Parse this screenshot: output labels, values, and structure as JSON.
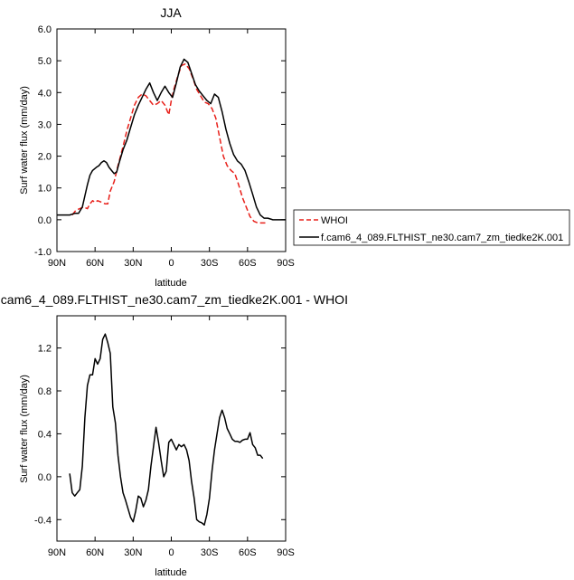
{
  "chart_data": [
    {
      "type": "line",
      "title": "JJA",
      "xlabel": "latitude",
      "ylabel": "Surf water flux (mm/day)",
      "xlim": [
        90,
        -90
      ],
      "ylim": [
        -1.0,
        6.0
      ],
      "xticks": [
        {
          "v": 90,
          "label": "90N"
        },
        {
          "v": 60,
          "label": "60N"
        },
        {
          "v": 30,
          "label": "30N"
        },
        {
          "v": 0,
          "label": "0"
        },
        {
          "v": -30,
          "label": "30S"
        },
        {
          "v": -60,
          "label": "60S"
        },
        {
          "v": -90,
          "label": "90S"
        }
      ],
      "yticks": [
        {
          "v": -1.0,
          "label": "-1.0"
        },
        {
          "v": 0.0,
          "label": "0.0"
        },
        {
          "v": 1.0,
          "label": "1.0"
        },
        {
          "v": 2.0,
          "label": "2.0"
        },
        {
          "v": 3.0,
          "label": "3.0"
        },
        {
          "v": 4.0,
          "label": "4.0"
        },
        {
          "v": 5.0,
          "label": "5.0"
        },
        {
          "v": 6.0,
          "label": "6.0"
        }
      ],
      "grid": false,
      "legend_position": "right, outside plot",
      "series": [
        {
          "name": "WHOI",
          "color": "#e8201a",
          "dash": true,
          "x": [
            78,
            75,
            72,
            69,
            66,
            64,
            62,
            60,
            58,
            55,
            52,
            50,
            48,
            45,
            42,
            38,
            35,
            32,
            29,
            26,
            23,
            20,
            17,
            14,
            11,
            8,
            5,
            2,
            0,
            -2,
            -5,
            -8,
            -11,
            -14,
            -17,
            -20,
            -23,
            -26,
            -29,
            -32,
            -35,
            -38,
            -41,
            -44,
            -47,
            -50,
            -53,
            -56,
            -59,
            -62,
            -65,
            -68,
            -71,
            -74
          ],
          "y": [
            0.15,
            0.3,
            0.35,
            0.4,
            0.35,
            0.5,
            0.6,
            0.55,
            0.6,
            0.55,
            0.5,
            0.5,
            0.9,
            1.2,
            1.7,
            2.3,
            2.8,
            3.2,
            3.6,
            3.85,
            3.95,
            3.9,
            3.75,
            3.6,
            3.65,
            3.75,
            3.6,
            3.3,
            3.75,
            4.1,
            4.5,
            4.85,
            4.9,
            4.75,
            4.45,
            4.1,
            3.9,
            3.7,
            3.65,
            3.5,
            3.2,
            2.6,
            2.0,
            1.7,
            1.55,
            1.45,
            1.1,
            0.7,
            0.4,
            0.1,
            -0.05,
            -0.1,
            -0.1,
            -0.1
          ]
        },
        {
          "name": "f.cam6_4_089.FLTHIST_ne30.cam7_zm_tiedke2K.001",
          "color": "#000000",
          "dash": false,
          "x": [
            90,
            85,
            80,
            76,
            73,
            70,
            68,
            66,
            64,
            62,
            59,
            57,
            55,
            53,
            51,
            49,
            47,
            45,
            43,
            41,
            38,
            35,
            32,
            29,
            26,
            23,
            20,
            17,
            14,
            11,
            8,
            5,
            2,
            -1,
            -4,
            -7,
            -10,
            -13,
            -16,
            -19,
            -22,
            -25,
            -28,
            -31,
            -34,
            -37,
            -40,
            -43,
            -46,
            -49,
            -52,
            -55,
            -58,
            -61,
            -64,
            -67,
            -70,
            -73,
            -76,
            -80,
            -85,
            -90
          ],
          "y": [
            0.15,
            0.15,
            0.15,
            0.2,
            0.2,
            0.4,
            0.75,
            1.1,
            1.4,
            1.55,
            1.65,
            1.7,
            1.8,
            1.85,
            1.8,
            1.65,
            1.55,
            1.45,
            1.5,
            1.8,
            2.2,
            2.5,
            2.9,
            3.3,
            3.6,
            3.85,
            4.1,
            4.3,
            4.0,
            3.75,
            4.0,
            4.2,
            4.0,
            3.85,
            4.3,
            4.8,
            5.05,
            4.95,
            4.6,
            4.25,
            4.05,
            3.9,
            3.75,
            3.65,
            3.95,
            3.85,
            3.4,
            2.85,
            2.4,
            2.05,
            1.85,
            1.75,
            1.55,
            1.2,
            0.8,
            0.4,
            0.15,
            0.05,
            0.05,
            0.0,
            0.0,
            0.0
          ]
        }
      ]
    },
    {
      "type": "line",
      "title": "f.cam6_4_089.FLTHIST_ne30.cam7_zm_tiedke2K.001 - WHOI",
      "xlabel": "latitude",
      "ylabel": "Surf water flux (mm/day)",
      "xlim": [
        90,
        -90
      ],
      "ylim": [
        -0.6,
        1.5
      ],
      "xticks": [
        {
          "v": 90,
          "label": "90N"
        },
        {
          "v": 60,
          "label": "60N"
        },
        {
          "v": 30,
          "label": "30N"
        },
        {
          "v": 0,
          "label": "0"
        },
        {
          "v": -30,
          "label": "30S"
        },
        {
          "v": -60,
          "label": "60S"
        },
        {
          "v": -90,
          "label": "90S"
        }
      ],
      "yticks": [
        {
          "v": -0.4,
          "label": "-0.4"
        },
        {
          "v": 0.0,
          "label": "0.0"
        },
        {
          "v": 0.4,
          "label": "0.4"
        },
        {
          "v": 0.8,
          "label": "0.8"
        },
        {
          "v": 1.2,
          "label": "1.2"
        }
      ],
      "grid": false,
      "series": [
        {
          "color": "#000000",
          "dash": false,
          "x": [
            80,
            78,
            76,
            74,
            72,
            70,
            68,
            66,
            64,
            62,
            60,
            58,
            56,
            54,
            52,
            50,
            48,
            46,
            44,
            42,
            40,
            38,
            36,
            34,
            32,
            30,
            28,
            26,
            24,
            22,
            20,
            18,
            16,
            14,
            12,
            10,
            8,
            6,
            4,
            2,
            0,
            -2,
            -4,
            -6,
            -8,
            -10,
            -12,
            -14,
            -16,
            -18,
            -20,
            -22,
            -24,
            -26,
            -28,
            -30,
            -32,
            -34,
            -36,
            -38,
            -40,
            -42,
            -44,
            -46,
            -48,
            -50,
            -52,
            -54,
            -56,
            -58,
            -60,
            -62,
            -64,
            -66,
            -68,
            -70,
            -72
          ],
          "y": [
            0.03,
            -0.15,
            -0.18,
            -0.15,
            -0.12,
            0.1,
            0.55,
            0.85,
            0.95,
            0.95,
            1.1,
            1.05,
            1.1,
            1.28,
            1.33,
            1.25,
            1.15,
            0.65,
            0.5,
            0.2,
            0.0,
            -0.15,
            -0.22,
            -0.3,
            -0.38,
            -0.42,
            -0.32,
            -0.18,
            -0.2,
            -0.28,
            -0.22,
            -0.12,
            0.1,
            0.28,
            0.46,
            0.32,
            0.15,
            0.0,
            0.05,
            0.32,
            0.35,
            0.3,
            0.25,
            0.3,
            0.28,
            0.3,
            0.25,
            0.15,
            -0.05,
            -0.2,
            -0.4,
            -0.42,
            -0.43,
            -0.45,
            -0.35,
            -0.2,
            0.05,
            0.25,
            0.4,
            0.55,
            0.62,
            0.55,
            0.45,
            0.4,
            0.35,
            0.33,
            0.33,
            0.32,
            0.34,
            0.35,
            0.35,
            0.41,
            0.3,
            0.27,
            0.2,
            0.2,
            0.17
          ]
        }
      ]
    }
  ]
}
